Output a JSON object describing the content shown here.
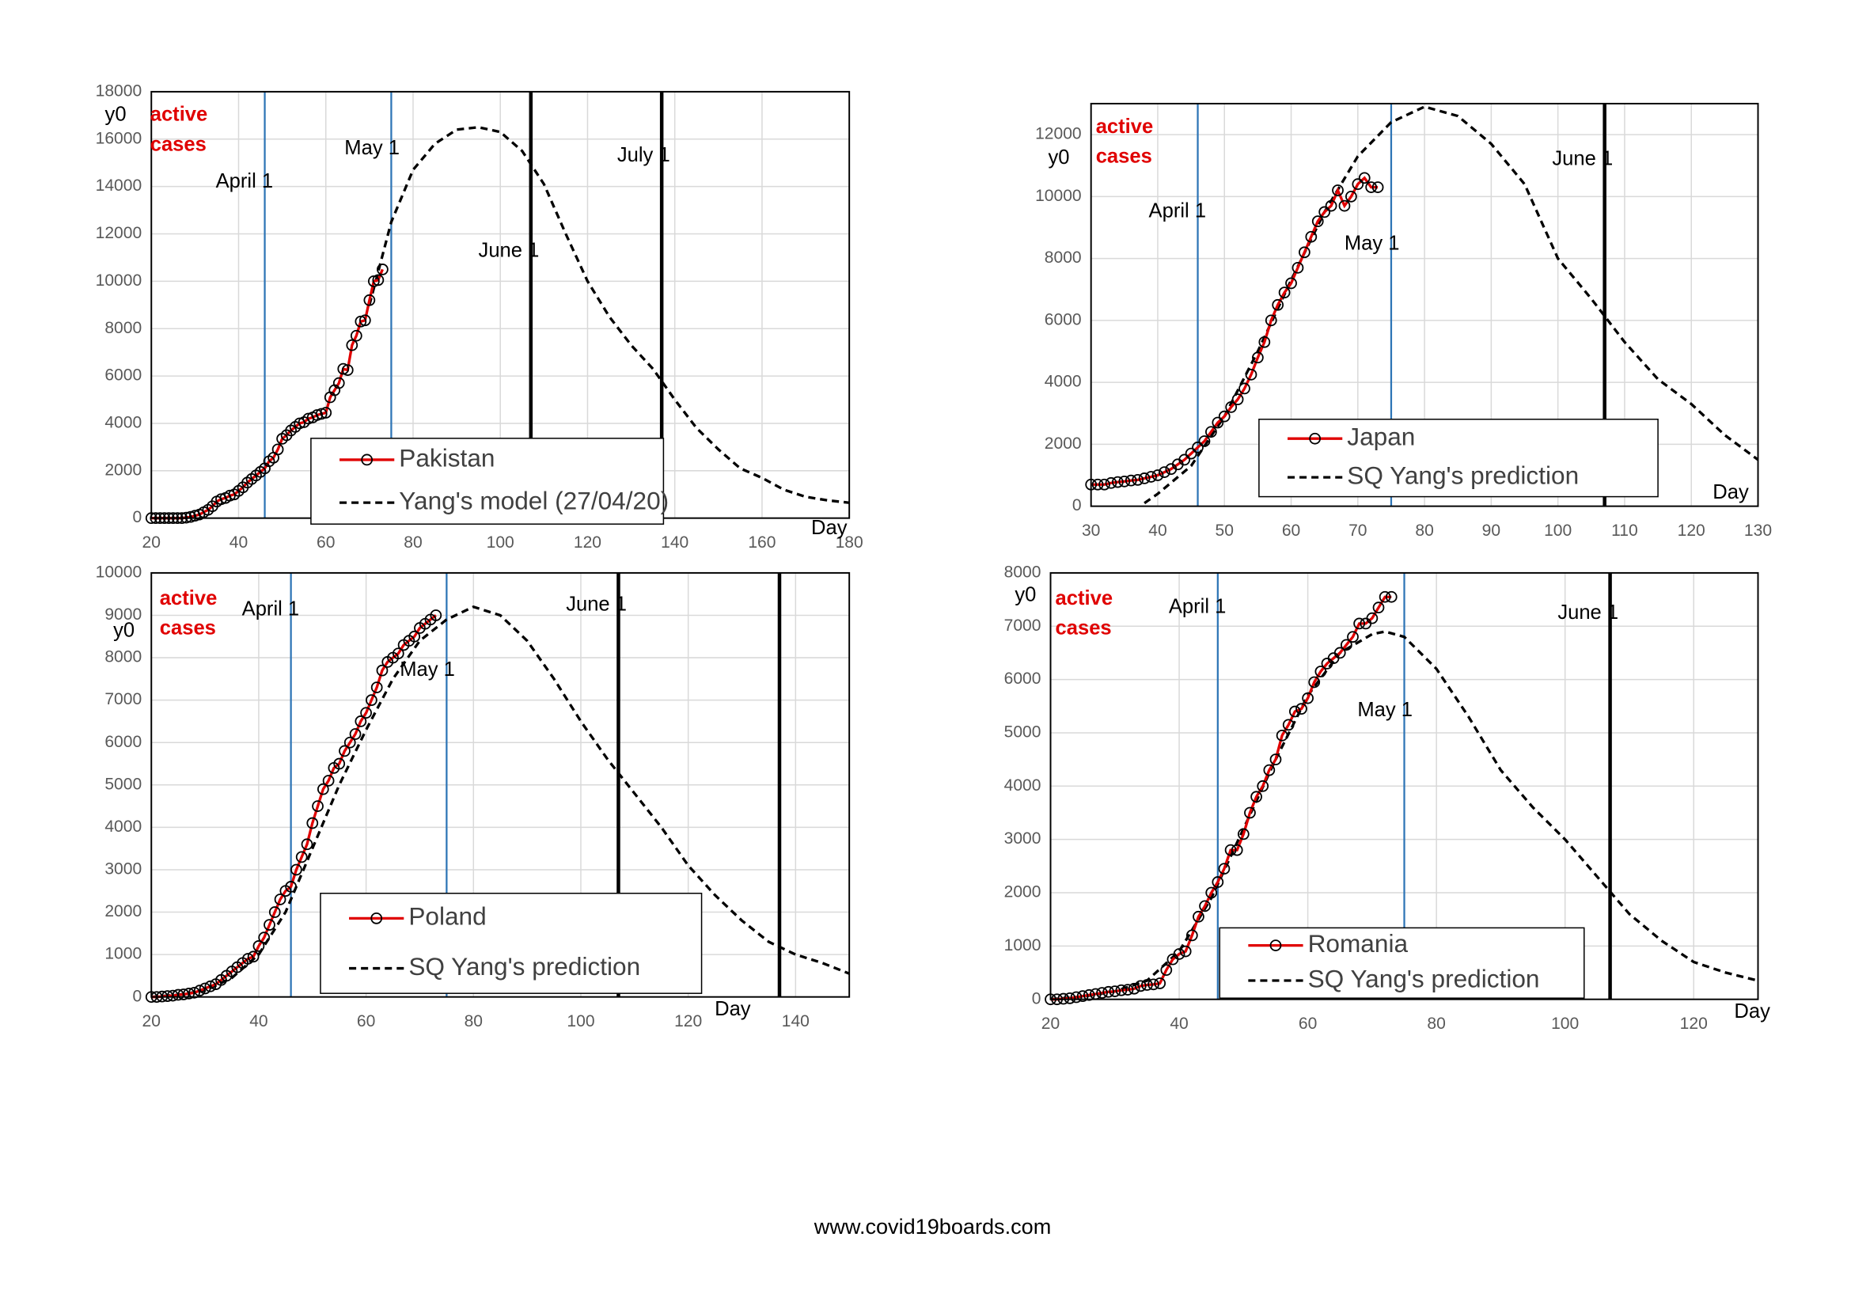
{
  "chart_data": [
    {
      "type": "line",
      "ylim": [
        0,
        18000
      ],
      "yticks": [
        0,
        2000,
        4000,
        6000,
        8000,
        10000,
        12000,
        14000,
        16000,
        18000
      ],
      "xlim": [
        20,
        180
      ],
      "xticks": [
        20,
        40,
        60,
        80,
        100,
        120,
        140,
        160,
        180
      ],
      "grid": true,
      "y_label": "y0",
      "y_note": [
        "active",
        "cases"
      ],
      "x_label": "Day",
      "vlines": [
        {
          "x": 46,
          "label": "April 1",
          "color": "#2e75b6",
          "width": 1.5
        },
        {
          "x": 75,
          "label": "May 1",
          "color": "#2e75b6",
          "width": 1.5
        },
        {
          "x": 107,
          "label": "June 1",
          "color": "#000000",
          "width": 3
        },
        {
          "x": 137,
          "label": "July 1",
          "color": "#000000",
          "width": 3
        }
      ],
      "series": [
        {
          "name": "Pakistan",
          "color": "#e00000",
          "marker": "circle",
          "line_style": "solid",
          "x": [
            20,
            21,
            22,
            23,
            24,
            25,
            26,
            27,
            28,
            29,
            30,
            31,
            32,
            33,
            34,
            35,
            36,
            37,
            38,
            39,
            40,
            41,
            42,
            43,
            44,
            45,
            46,
            47,
            48,
            49,
            50,
            51,
            52,
            53,
            54,
            55,
            56,
            57,
            58,
            59,
            60,
            61,
            62,
            63,
            64,
            65,
            66,
            67,
            68,
            69,
            70,
            71,
            72,
            73
          ],
          "values": [
            0,
            0,
            0,
            0,
            0,
            0,
            0,
            0,
            20,
            50,
            100,
            150,
            250,
            350,
            500,
            700,
            800,
            850,
            950,
            1000,
            1150,
            1300,
            1500,
            1650,
            1800,
            1950,
            2100,
            2400,
            2550,
            2900,
            3350,
            3500,
            3700,
            3850,
            4000,
            4050,
            4200,
            4250,
            4350,
            4400,
            4450,
            5100,
            5400,
            5700,
            6300,
            6250,
            7300,
            7700,
            8300,
            8350,
            9200,
            10000,
            10050,
            10500
          ]
        },
        {
          "name": "Yang's model (27/04/20)",
          "color": "#000000",
          "line_style": "dashed",
          "x": [
            70,
            75,
            80,
            85,
            90,
            95,
            100,
            105,
            110,
            115,
            120,
            125,
            130,
            135,
            140,
            145,
            150,
            155,
            160,
            165,
            170,
            175,
            180
          ],
          "values": [
            9000,
            12500,
            14700,
            15800,
            16400,
            16500,
            16300,
            15500,
            14100,
            12000,
            10000,
            8500,
            7300,
            6300,
            5000,
            3800,
            2900,
            2100,
            1700,
            1200,
            900,
            750,
            650
          ]
        }
      ]
    },
    {
      "type": "line",
      "ylim": [
        0,
        13000
      ],
      "yticks": [
        0,
        2000,
        4000,
        6000,
        8000,
        10000,
        12000
      ],
      "xlim": [
        30,
        130
      ],
      "xticks": [
        30,
        40,
        50,
        60,
        70,
        80,
        90,
        100,
        110,
        120,
        130
      ],
      "grid": true,
      "y_label": "y0",
      "y_note": [
        "active",
        "cases"
      ],
      "x_label": "Day",
      "vlines": [
        {
          "x": 46,
          "label": "April 1",
          "color": "#2e75b6",
          "width": 1.5
        },
        {
          "x": 75,
          "label": "May 1",
          "color": "#2e75b6",
          "width": 1.5
        },
        {
          "x": 107,
          "label": "June 1",
          "color": "#000000",
          "width": 3
        }
      ],
      "series": [
        {
          "name": "Japan",
          "color": "#e00000",
          "marker": "circle",
          "line_style": "solid",
          "x": [
            30,
            31,
            32,
            33,
            34,
            35,
            36,
            37,
            38,
            39,
            40,
            41,
            42,
            43,
            44,
            45,
            46,
            47,
            48,
            49,
            50,
            51,
            52,
            53,
            54,
            55,
            56,
            57,
            58,
            59,
            60,
            61,
            62,
            63,
            64,
            65,
            66,
            67,
            68,
            69,
            70,
            71,
            72,
            73
          ],
          "values": [
            700,
            700,
            700,
            750,
            780,
            800,
            830,
            850,
            900,
            950,
            1000,
            1100,
            1200,
            1350,
            1500,
            1700,
            1900,
            2100,
            2400,
            2700,
            2900,
            3200,
            3450,
            3800,
            4250,
            4800,
            5300,
            6000,
            6500,
            6900,
            7200,
            7700,
            8200,
            8700,
            9200,
            9500,
            9700,
            10200,
            9700,
            10000,
            10400,
            10600,
            10300,
            10300
          ]
        },
        {
          "name": "SQ Yang's prediction",
          "color": "#000000",
          "line_style": "dashed",
          "x": [
            38,
            40,
            45,
            50,
            55,
            60,
            65,
            70,
            75,
            80,
            85,
            90,
            95,
            100,
            105,
            110,
            115,
            120,
            125,
            130
          ],
          "values": [
            100,
            400,
            1300,
            2900,
            5000,
            7300,
            9500,
            11300,
            12400,
            12900,
            12600,
            11700,
            10400,
            8000,
            6700,
            5300,
            4100,
            3300,
            2300,
            1500
          ]
        }
      ]
    },
    {
      "type": "line",
      "ylim": [
        0,
        10000
      ],
      "yticks": [
        0,
        1000,
        2000,
        3000,
        4000,
        5000,
        6000,
        7000,
        8000,
        9000,
        10000
      ],
      "xlim": [
        20,
        150
      ],
      "xticks": [
        20,
        40,
        60,
        80,
        100,
        120,
        140
      ],
      "grid": true,
      "y_label": "y0",
      "y_note": [
        "active",
        "cases"
      ],
      "x_label": "Day",
      "vlines": [
        {
          "x": 46,
          "label": "April 1",
          "color": "#2e75b6",
          "width": 1.5
        },
        {
          "x": 75,
          "label": "May 1",
          "color": "#2e75b6",
          "width": 1.5
        },
        {
          "x": 107,
          "label": "June 1",
          "color": "#000000",
          "width": 3
        },
        {
          "x": 137,
          "color": "#000000",
          "width": 3
        }
      ],
      "series": [
        {
          "name": "Poland",
          "color": "#e00000",
          "marker": "circle",
          "line_style": "solid",
          "x": [
            20,
            21,
            22,
            23,
            24,
            25,
            26,
            27,
            28,
            29,
            30,
            31,
            32,
            33,
            34,
            35,
            36,
            37,
            38,
            39,
            40,
            41,
            42,
            43,
            44,
            45,
            46,
            47,
            48,
            49,
            50,
            51,
            52,
            53,
            54,
            55,
            56,
            57,
            58,
            59,
            60,
            61,
            62,
            63,
            64,
            65,
            66,
            67,
            68,
            69,
            70,
            71,
            72,
            73
          ],
          "values": [
            0,
            0,
            10,
            20,
            30,
            50,
            60,
            80,
            100,
            150,
            200,
            250,
            300,
            400,
            500,
            600,
            700,
            800,
            900,
            950,
            1200,
            1400,
            1700,
            2000,
            2300,
            2500,
            2600,
            3000,
            3300,
            3600,
            4100,
            4500,
            4900,
            5100,
            5400,
            5500,
            5800,
            6000,
            6200,
            6500,
            6700,
            7000,
            7300,
            7700,
            7900,
            8000,
            8100,
            8300,
            8400,
            8500,
            8700,
            8800,
            8900,
            9000
          ]
        },
        {
          "name": "SQ Yang's prediction",
          "color": "#000000",
          "line_style": "dashed",
          "x": [
            20,
            25,
            30,
            35,
            40,
            45,
            50,
            55,
            60,
            65,
            70,
            75,
            80,
            85,
            90,
            95,
            100,
            105,
            110,
            115,
            120,
            125,
            130,
            135,
            140,
            145,
            150
          ],
          "values": [
            0,
            50,
            150,
            450,
            1000,
            2000,
            3500,
            5000,
            6300,
            7500,
            8400,
            8900,
            9200,
            9000,
            8400,
            7500,
            6500,
            5600,
            4800,
            4000,
            3100,
            2400,
            1800,
            1300,
            1000,
            800,
            550
          ]
        }
      ]
    },
    {
      "type": "line",
      "ylim": [
        0,
        8000
      ],
      "yticks": [
        0,
        1000,
        2000,
        3000,
        4000,
        5000,
        6000,
        7000,
        8000
      ],
      "xlim": [
        20,
        130
      ],
      "xticks": [
        20,
        40,
        60,
        80,
        100,
        120
      ],
      "grid": true,
      "y_label": "y0",
      "y_note": [
        "active",
        "cases"
      ],
      "x_label": "Day",
      "vlines": [
        {
          "x": 46,
          "label": "April 1",
          "color": "#2e75b6",
          "width": 1.5
        },
        {
          "x": 75,
          "label": "May 1",
          "color": "#2e75b6",
          "width": 1.5
        },
        {
          "x": 107,
          "label": "June 1",
          "color": "#000000",
          "width": 3
        }
      ],
      "series": [
        {
          "name": "Romania",
          "color": "#e00000",
          "marker": "circle",
          "line_style": "solid",
          "x": [
            20,
            21,
            22,
            23,
            24,
            25,
            26,
            27,
            28,
            29,
            30,
            31,
            32,
            33,
            34,
            35,
            36,
            37,
            38,
            39,
            40,
            41,
            42,
            43,
            44,
            45,
            46,
            47,
            48,
            49,
            50,
            51,
            52,
            53,
            54,
            55,
            56,
            57,
            58,
            59,
            60,
            61,
            62,
            63,
            64,
            65,
            66,
            67,
            68,
            69,
            70,
            71,
            72,
            73
          ],
          "values": [
            0,
            0,
            10,
            20,
            40,
            60,
            80,
            100,
            120,
            140,
            150,
            170,
            180,
            200,
            250,
            270,
            280,
            300,
            550,
            750,
            850,
            900,
            1200,
            1550,
            1750,
            2000,
            2200,
            2450,
            2800,
            2800,
            3100,
            3500,
            3800,
            4000,
            4300,
            4500,
            4950,
            5150,
            5400,
            5450,
            5650,
            5950,
            6150,
            6300,
            6400,
            6500,
            6650,
            6800,
            7050,
            7050,
            7150,
            7350,
            7550,
            7550
          ]
        },
        {
          "name": "SQ Yang's prediction",
          "color": "#000000",
          "line_style": "dashed",
          "x": [
            20,
            25,
            30,
            35,
            40,
            45,
            50,
            55,
            60,
            65,
            70,
            72,
            75,
            80,
            85,
            90,
            95,
            100,
            105,
            110,
            115,
            120,
            125,
            130
          ],
          "values": [
            0,
            50,
            150,
            350,
            900,
            1900,
            3200,
            4500,
            5700,
            6500,
            6850,
            6900,
            6800,
            6200,
            5300,
            4300,
            3600,
            3000,
            2300,
            1600,
            1100,
            700,
            500,
            350
          ]
        }
      ]
    }
  ],
  "source": "www.covid19boards.com"
}
